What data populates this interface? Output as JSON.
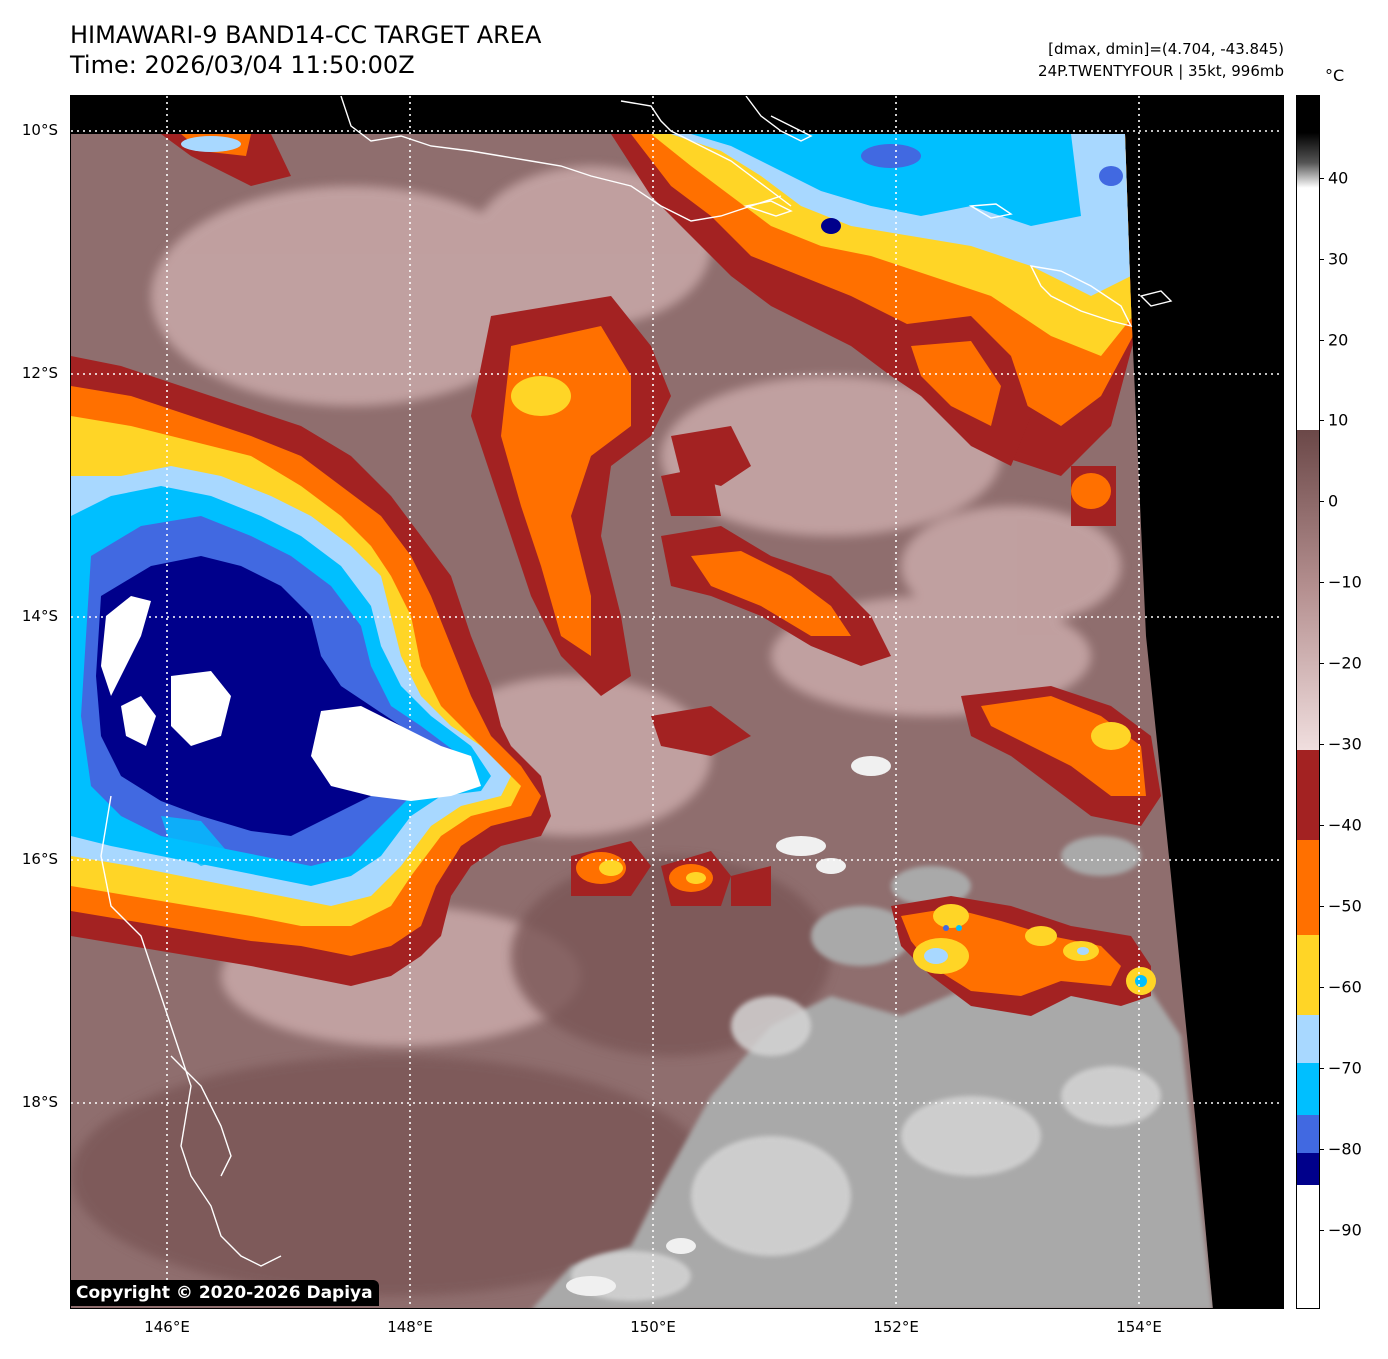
{
  "header": {
    "title_line1": "HIMAWARI-9 BAND14-CC TARGET AREA",
    "title_line2": "Time: 2026/03/04 11:50:00Z",
    "stats_line": "[dmax, dmin]=(4.704, -43.845)",
    "storm_line": "24P.TWENTYFOUR | 35kt, 996mb"
  },
  "map": {
    "lat_labels": [
      "10°S",
      "12°S",
      "14°S",
      "16°S",
      "18°S"
    ],
    "lon_labels": [
      "146°E",
      "148°E",
      "150°E",
      "152°E",
      "154°E"
    ],
    "copyright": "Copyright © 2020-2026 Dapiya",
    "colors": {
      "warm_cloud": "#8f6868",
      "grey_clear": "#a9a9a9",
      "dark_red": "#a32222",
      "orange": "#ff7000",
      "yellow": "#ffd526",
      "light_blue": "#a8d8ff",
      "cyan": "#00bfff",
      "blue": "#4169e1",
      "navy": "#00008b",
      "white": "#ffffff",
      "no_data": "#000000"
    }
  },
  "colorbar": {
    "unit": "°C",
    "tick_labels": [
      "40",
      "30",
      "20",
      "10",
      "0",
      "−10",
      "−20",
      "−30",
      "−40",
      "−50",
      "−60",
      "−70",
      "−80",
      "−90"
    ],
    "range": [
      -100,
      50
    ]
  }
}
